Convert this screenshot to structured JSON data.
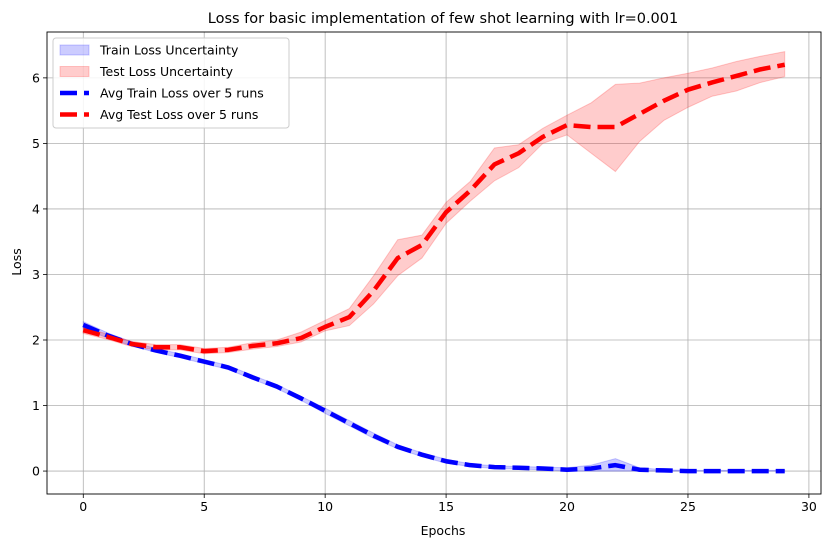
{
  "chart_data": {
    "type": "line",
    "title": "Loss for basic implementation of few shot learning with lr=0.001",
    "xlabel": "Epochs",
    "ylabel": "Loss",
    "xlim": [
      -1.5,
      30.5
    ],
    "ylim": [
      -0.35,
      6.7
    ],
    "xticks": [
      0,
      5,
      10,
      15,
      20,
      25,
      30
    ],
    "yticks": [
      0,
      1,
      2,
      3,
      4,
      5,
      6
    ],
    "grid": true,
    "legend_position": "top-left",
    "x": [
      0,
      1,
      2,
      3,
      4,
      5,
      6,
      7,
      8,
      9,
      10,
      11,
      12,
      13,
      14,
      15,
      16,
      17,
      18,
      19,
      20,
      21,
      22,
      23,
      24,
      25,
      26,
      27,
      28,
      29
    ],
    "series": [
      {
        "name": "Avg Train Loss over 5 runs",
        "band_name": "Train Loss Uncertainty",
        "color": "#0000ff",
        "values": [
          2.23,
          2.07,
          1.94,
          1.84,
          1.76,
          1.67,
          1.58,
          1.43,
          1.29,
          1.11,
          0.92,
          0.73,
          0.54,
          0.37,
          0.25,
          0.15,
          0.09,
          0.06,
          0.05,
          0.04,
          0.02,
          0.04,
          0.09,
          0.02,
          0.01,
          0.0,
          0.0,
          0.0,
          0.0,
          0.0
        ],
        "upper": [
          2.28,
          2.11,
          1.97,
          1.87,
          1.79,
          1.7,
          1.61,
          1.46,
          1.32,
          1.14,
          0.96,
          0.77,
          0.58,
          0.4,
          0.28,
          0.18,
          0.11,
          0.08,
          0.07,
          0.06,
          0.05,
          0.09,
          0.19,
          0.05,
          0.02,
          0.01,
          0.01,
          0.01,
          0.01,
          0.01
        ],
        "lower": [
          2.18,
          2.03,
          1.91,
          1.81,
          1.73,
          1.64,
          1.55,
          1.4,
          1.26,
          1.08,
          0.88,
          0.69,
          0.5,
          0.34,
          0.22,
          0.12,
          0.07,
          0.04,
          0.03,
          0.02,
          0.0,
          0.0,
          0.0,
          0.0,
          0.0,
          0.0,
          0.0,
          0.0,
          0.0,
          0.0
        ]
      },
      {
        "name": "Avg Test Loss over 5 runs",
        "band_name": "Test Loss Uncertainty",
        "color": "#ff0000",
        "values": [
          2.15,
          2.05,
          1.94,
          1.89,
          1.89,
          1.83,
          1.85,
          1.91,
          1.95,
          2.03,
          2.2,
          2.35,
          2.75,
          3.25,
          3.45,
          3.95,
          4.28,
          4.68,
          4.85,
          5.1,
          5.28,
          5.25,
          5.25,
          5.45,
          5.65,
          5.82,
          5.93,
          6.03,
          6.13,
          6.2
        ],
        "upper": [
          2.2,
          2.09,
          1.98,
          1.93,
          1.93,
          1.87,
          1.89,
          1.96,
          2.0,
          2.12,
          2.3,
          2.48,
          2.98,
          3.53,
          3.6,
          4.1,
          4.42,
          4.93,
          4.98,
          5.23,
          5.43,
          5.62,
          5.9,
          5.92,
          6.0,
          6.07,
          6.15,
          6.25,
          6.33,
          6.4
        ],
        "lower": [
          2.1,
          2.01,
          1.9,
          1.85,
          1.85,
          1.79,
          1.81,
          1.86,
          1.9,
          1.97,
          2.14,
          2.22,
          2.55,
          2.98,
          3.25,
          3.78,
          4.12,
          4.43,
          4.63,
          5.0,
          5.13,
          4.85,
          4.57,
          5.03,
          5.35,
          5.55,
          5.72,
          5.8,
          5.93,
          6.02
        ]
      }
    ]
  }
}
